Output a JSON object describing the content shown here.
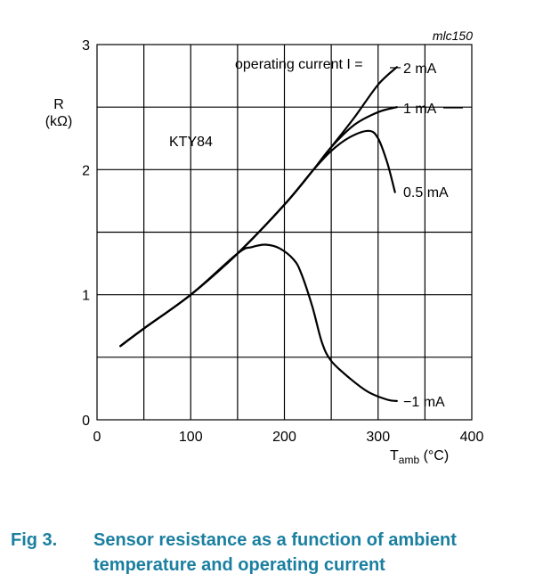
{
  "chart_data": {
    "type": "line",
    "device": "KTY84",
    "drawing_code": "mlc150",
    "ylabel_line1": "R",
    "ylabel_line2": "(kΩ)",
    "xlabel_main": "T",
    "xlabel_sub": "amb",
    "xlabel_unit": " (°C)",
    "legend_title": "operating current I =",
    "xlim": [
      0,
      400
    ],
    "ylim": [
      0,
      3
    ],
    "xticks": [
      "0",
      "100",
      "200",
      "300",
      "400"
    ],
    "yticks": [
      "0",
      "1",
      "2",
      "3"
    ],
    "grid": true,
    "series": [
      {
        "name": "2 mA",
        "x": [
          25,
          50,
          100,
          150,
          200,
          230,
          250,
          275,
          300,
          320
        ],
        "y": [
          0.59,
          0.73,
          1.0,
          1.33,
          1.72,
          1.99,
          2.18,
          2.42,
          2.68,
          2.82
        ]
      },
      {
        "name": "1 mA",
        "x": [
          25,
          50,
          100,
          150,
          200,
          230,
          250,
          275,
          300,
          320
        ],
        "y": [
          0.59,
          0.73,
          1.0,
          1.33,
          1.72,
          1.99,
          2.18,
          2.36,
          2.46,
          2.5
        ]
      },
      {
        "name": "0.5 mA",
        "x": [
          25,
          50,
          100,
          150,
          200,
          230,
          250,
          270,
          290,
          300,
          310,
          318
        ],
        "y": [
          0.59,
          0.73,
          1.0,
          1.33,
          1.72,
          1.99,
          2.15,
          2.26,
          2.31,
          2.25,
          2.05,
          1.82
        ]
      },
      {
        "name": "−1 mA",
        "x": [
          25,
          50,
          100,
          150,
          165,
          180,
          195,
          210,
          218,
          230,
          240,
          250,
          270,
          290,
          310,
          320
        ],
        "y": [
          0.59,
          0.73,
          1.0,
          1.33,
          1.38,
          1.4,
          1.37,
          1.28,
          1.17,
          0.9,
          0.62,
          0.47,
          0.33,
          0.22,
          0.16,
          0.15
        ]
      }
    ]
  },
  "caption": {
    "number": "Fig 3.",
    "text": "Sensor resistance as a function of ambient temperature and operating current"
  }
}
